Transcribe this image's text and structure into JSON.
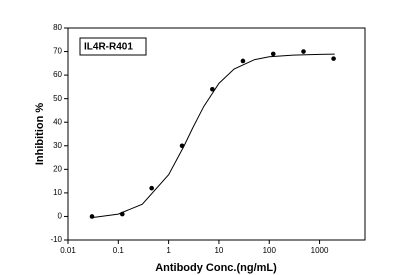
{
  "chart_data": {
    "type": "scatter",
    "x_label": "Antibody  Conc.(ng/mL)",
    "y_label": "Inhibition %",
    "x_log": true,
    "xlim": [
      0.01,
      8000
    ],
    "xticks": [
      0.01,
      0.1,
      1,
      10,
      100,
      1000
    ],
    "ylim": [
      -10,
      80
    ],
    "yticks": [
      -10,
      0,
      10,
      20,
      30,
      40,
      50,
      60,
      70,
      80
    ],
    "series": [
      {
        "name": "IL4R-R401",
        "color": "#000000",
        "type": "scatter",
        "x": [
          0.03,
          0.12,
          0.46,
          1.85,
          7.4,
          30,
          120,
          480,
          1900
        ],
        "values": [
          0,
          1,
          12,
          30,
          54,
          66,
          69,
          70,
          67
        ]
      },
      {
        "color": "#000000",
        "type": "line",
        "x": [
          0.03,
          0.1,
          0.3,
          1,
          2,
          3,
          5,
          10,
          20,
          50,
          100,
          300,
          1000,
          2000
        ],
        "values": [
          -0.5,
          1.0,
          5.2,
          17.7,
          29.7,
          37.5,
          46.7,
          56.5,
          62.6,
          66.5,
          67.8,
          68.5,
          68.8,
          68.9
        ]
      }
    ]
  }
}
